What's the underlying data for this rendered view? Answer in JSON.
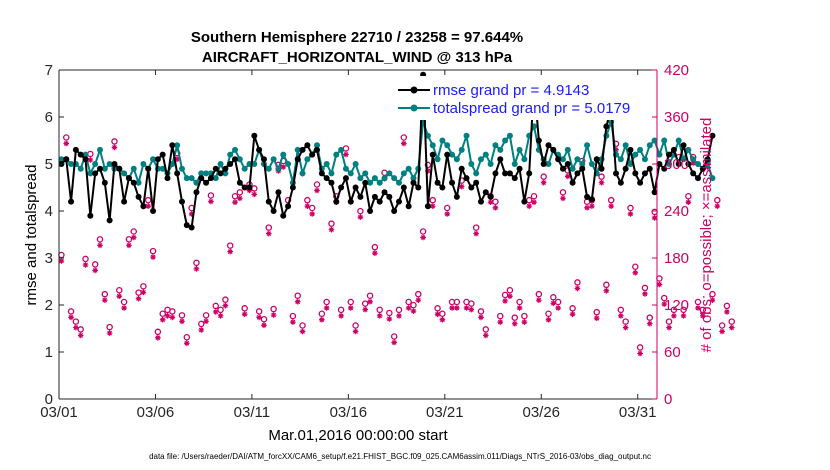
{
  "chart_data": {
    "type": "line",
    "title_line1": "Southern Hemisphere 22710 / 23258 = 97.644%",
    "title_line2": "AIRCRAFT_HORIZONTAL_WIND @ 313 hPa",
    "ylabel_left": "rmse and totalspread",
    "ylabel_right": "# of obs: o=possible; ×=assimilated",
    "xlabel": "Mar.01,2016 00:00:00 start",
    "footer": "data file: /Users/raeder/DAI/ATM_forcXX/CAM6_setup/f.e21.FHIST_BGC.f09_025.CAM6assim.011/Diags_NTrS_2016-03/obs_diag_output.nc",
    "x_ticks": [
      {
        "day": 1,
        "label": "03/01"
      },
      {
        "day": 6,
        "label": "03/06"
      },
      {
        "day": 11,
        "label": "03/11"
      },
      {
        "day": 16,
        "label": "03/16"
      },
      {
        "day": 21,
        "label": "03/21"
      },
      {
        "day": 26,
        "label": "03/26"
      },
      {
        "day": 31,
        "label": "03/31"
      }
    ],
    "xlim": [
      1,
      32
    ],
    "y_ticks_left": [
      "0",
      "1",
      "2",
      "3",
      "4",
      "5",
      "6",
      "7"
    ],
    "ylim_left": [
      0,
      7
    ],
    "y_ticks_right": [
      "0",
      "60",
      "120",
      "180",
      "240",
      "300",
      "360",
      "420"
    ],
    "ylim_right": [
      0,
      420
    ],
    "colors": {
      "rmse": "#000000",
      "spread": "#008080",
      "obs": "#cc0066",
      "legend_text": "#1a1aff"
    },
    "series": [
      {
        "name": "rmse",
        "legend": "rmse grand pr = 4.9143",
        "x_start": 1.125,
        "x_step": 0.25,
        "values": [
          5.0,
          5.1,
          4.2,
          5.3,
          5.2,
          5.1,
          3.9,
          4.8,
          4.9,
          4.6,
          3.8,
          5.0,
          4.9,
          4.2,
          4.7,
          4.6,
          4.3,
          4.1,
          4.9,
          4.0,
          5.1,
          5.2,
          4.7,
          5.4,
          4.8,
          4.2,
          3.7,
          3.65,
          4.4,
          4.7,
          4.6,
          4.7,
          4.9,
          4.8,
          4.9,
          5.0,
          5.1,
          4.6,
          4.5,
          4.5,
          5.6,
          5.3,
          5.1,
          4.2,
          4.0,
          4.4,
          3.9,
          4.1,
          4.5,
          5.1,
          5.3,
          5.4,
          5.2,
          5.3,
          4.8,
          4.7,
          4.6,
          4.2,
          4.5,
          4.7,
          4.2,
          4.5,
          4.3,
          4.6,
          4.0,
          4.3,
          4.2,
          4.4,
          4.3,
          4.0,
          4.2,
          4.5,
          4.1,
          4.6,
          4.5,
          6.9,
          4.1,
          5.2,
          4.6,
          4.5,
          5.2,
          4.6,
          4.3,
          4.9,
          4.7,
          4.5,
          4.6,
          4.2,
          4.4,
          4.3,
          4.8,
          5.1,
          4.8,
          4.8,
          4.7,
          4.9,
          4.2,
          4.8,
          6.75,
          5.5,
          5.0,
          5.4,
          5.3,
          5.1,
          4.9,
          5.0,
          4.6,
          4.8,
          4.9,
          4.3,
          4.25,
          5.1,
          4.9,
          5.8,
          6.2,
          4.8,
          4.6,
          4.9,
          5.3,
          4.8,
          4.6,
          4.8,
          4.9,
          4.4,
          5.0,
          4.9,
          5.2,
          5.3,
          5.0,
          5.4,
          5.0,
          4.8,
          4.7,
          4.9,
          5.1,
          5.6
        ]
      },
      {
        "name": "totalspread",
        "legend": "totalspread grand pr = 5.0179",
        "x_start": 1.125,
        "x_step": 0.25,
        "values": [
          5.1,
          5.1,
          5.0,
          5.0,
          4.9,
          5.2,
          4.8,
          5.0,
          5.3,
          4.9,
          5.0,
          4.9,
          4.9,
          4.8,
          4.7,
          4.9,
          4.6,
          5.0,
          4.9,
          5.1,
          4.9,
          4.9,
          4.8,
          5.0,
          5.4,
          4.9,
          4.7,
          4.7,
          4.6,
          4.8,
          4.8,
          4.8,
          4.7,
          5.0,
          4.8,
          5.2,
          5.3,
          5.1,
          4.9,
          5.0,
          5.0,
          5.3,
          5.0,
          4.9,
          5.1,
          4.9,
          5.2,
          5.0,
          4.6,
          5.3,
          4.8,
          5.1,
          5.2,
          5.4,
          4.9,
          5.0,
          4.8,
          5.2,
          5.3,
          4.9,
          4.8,
          5.0,
          4.7,
          4.8,
          4.6,
          4.7,
          4.6,
          4.7,
          4.8,
          4.7,
          4.6,
          4.8,
          4.9,
          4.7,
          4.9,
          5.9,
          5.6,
          5.4,
          5.1,
          5.5,
          5.4,
          5.2,
          5.1,
          5.3,
          5.6,
          5.0,
          4.8,
          5.1,
          5.2,
          5.0,
          5.4,
          5.3,
          5.5,
          5.6,
          5.0,
          5.3,
          5.1,
          5.6,
          5.8,
          5.3,
          5.1,
          5.0,
          5.3,
          5.2,
          5.1,
          5.3,
          4.9,
          5.1,
          5.0,
          5.4,
          5.0,
          4.8,
          5.1,
          5.6,
          5.9,
          5.2,
          5.1,
          5.4,
          5.0,
          5.2,
          5.3,
          5.1,
          5.4,
          5.5,
          5.2,
          5.5,
          5.0,
          5.2,
          5.5,
          5.1,
          5.3,
          5.1,
          5.0,
          4.9,
          5.0,
          4.7
        ]
      }
    ],
    "obs": {
      "x_start": 1.125,
      "x_step": 0.25,
      "possible": [
        180,
        330,
        108,
        95,
        85,
        175,
        309,
        168,
        200,
        130,
        88,
        325,
        135,
        120,
        200,
        210,
        132,
        140,
        250,
        185,
        82,
        105,
        110,
        108,
        310,
        103,
        75,
        240,
        170,
        92,
        103,
        256,
        115,
        110,
        123,
        192,
        255,
        260,
        112,
        270,
        265,
        108,
        98,
        215,
        111,
        295,
        300,
        250,
        102,
        128,
        90,
        250,
        240,
        270,
        105,
        120,
        220,
        255,
        110,
        316,
        120,
        90,
        236,
        118,
        128,
        190,
        110,
        285,
        106,
        76,
        110,
        330,
        120,
        116,
        130,
        210,
        295,
        250,
        112,
        105,
        240,
        120,
        120,
        275,
        120,
        118,
        215,
        108,
        85,
        255,
        248,
        102,
        129,
        135,
        100,
        120,
        102,
        250,
        255,
        130,
        280,
        105,
        126,
        120,
        260,
        288,
        112,
        145,
        300,
        248,
        250,
        107,
        280,
        142,
        250,
        322,
        110,
        95,
        240,
        165,
        62,
        138,
        100,
        235,
        150,
        125,
        95,
        110,
        305,
        110,
        255,
        305,
        120,
        110,
        300,
        130,
        250,
        90,
        115,
        95
      ]
    }
  }
}
